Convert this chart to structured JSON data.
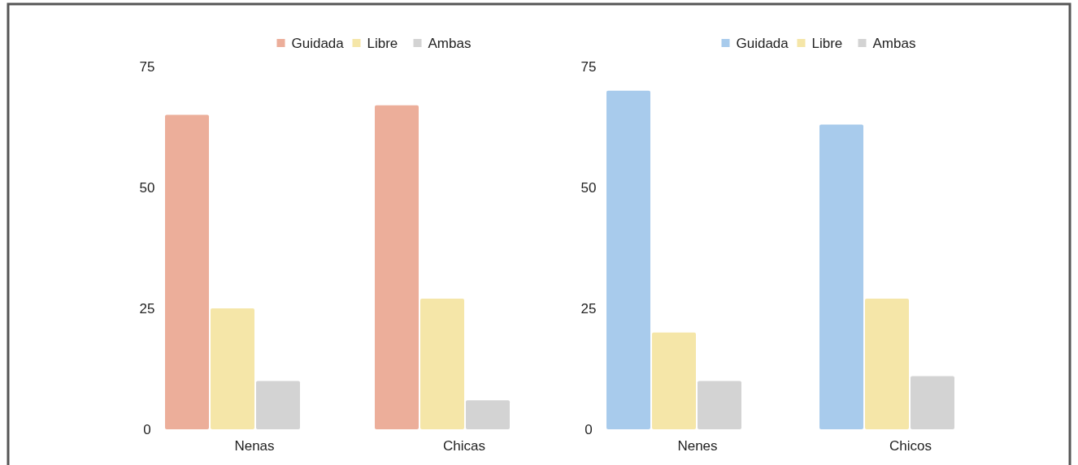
{
  "chart_data": [
    {
      "type": "bar",
      "categories": [
        "Nenas",
        "Chicas"
      ],
      "series": [
        {
          "name": "Guidada",
          "color": "#ecae9a",
          "values": [
            65,
            67
          ]
        },
        {
          "name": "Libre",
          "color": "#f5e6a8",
          "values": [
            25,
            27
          ]
        },
        {
          "name": "Ambas",
          "color": "#d3d3d3",
          "values": [
            10,
            6
          ]
        }
      ],
      "ylim": [
        0,
        75
      ],
      "yticks": [
        0,
        25,
        50,
        75
      ],
      "legend": "top"
    },
    {
      "type": "bar",
      "categories": [
        "Nenes",
        "Chicos"
      ],
      "series": [
        {
          "name": "Guidada",
          "color": "#a8cbec",
          "values": [
            70,
            63
          ]
        },
        {
          "name": "Libre",
          "color": "#f5e6a8",
          "values": [
            20,
            27
          ]
        },
        {
          "name": "Ambas",
          "color": "#d3d3d3",
          "values": [
            10,
            11
          ]
        }
      ],
      "ylim": [
        0,
        75
      ],
      "yticks": [
        0,
        25,
        50,
        75
      ],
      "legend": "top"
    }
  ]
}
